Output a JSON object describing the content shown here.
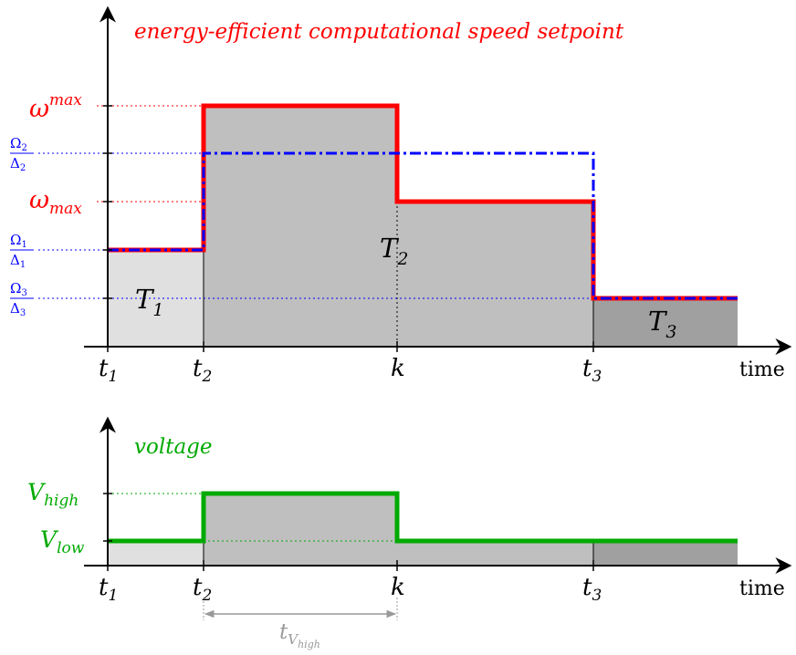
{
  "top_plot": {
    "title": "energy-efficient computational speed setpoint",
    "y_labels": {
      "omega_max_upper": {
        "base": "ω",
        "sup": "max"
      },
      "omega2": {
        "num": "Ω",
        "num_sub": "2",
        "den": "Δ",
        "den_sub": "2"
      },
      "omega_max_lower": {
        "base": "ω",
        "sub": "max"
      },
      "omega1": {
        "num": "Ω",
        "num_sub": "1",
        "den": "Δ",
        "den_sub": "1"
      },
      "omega3": {
        "num": "Ω",
        "num_sub": "3",
        "den": "Δ",
        "den_sub": "3"
      }
    },
    "x_labels": {
      "t1": {
        "base": "t",
        "sub": "1"
      },
      "t2": {
        "base": "t",
        "sub": "2"
      },
      "k": {
        "base": "k"
      },
      "t3": {
        "base": "t",
        "sub": "3"
      },
      "time": "time"
    },
    "region_labels": {
      "T1": {
        "base": "T",
        "sub": "1"
      },
      "T2": {
        "base": "T",
        "sub": "2"
      },
      "T3": {
        "base": "T",
        "sub": "3"
      }
    }
  },
  "bottom_plot": {
    "title": "voltage",
    "y_labels": {
      "v_high": {
        "base": "V",
        "sub": "high"
      },
      "v_low": {
        "base": "V",
        "sub": "low"
      }
    },
    "x_labels": {
      "t1": {
        "base": "t",
        "sub": "1"
      },
      "t2": {
        "base": "t",
        "sub": "2"
      },
      "k": {
        "base": "k"
      },
      "t3": {
        "base": "t",
        "sub": "3"
      },
      "time": "time"
    },
    "duration_label": {
      "base": "t",
      "sub": "V",
      "subsub": "high"
    }
  },
  "colors": {
    "speed_setpoint": "#ff0000",
    "omega_ratio": "#0000ff",
    "voltage": "#00aa00",
    "region_light": "#e0e0e0",
    "region_mid": "#bfbfbf",
    "region_dark": "#a0a0a0",
    "duration_arrow": "#999999"
  }
}
